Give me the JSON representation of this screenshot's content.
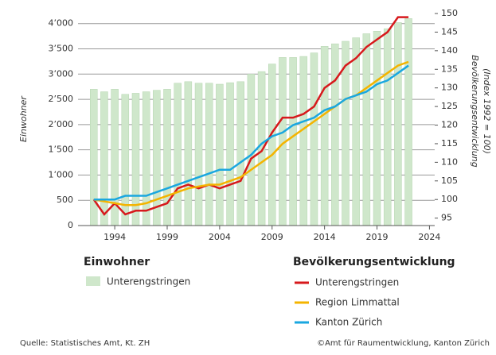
{
  "chart_data": {
    "type": "bar+line",
    "ylabel": "Einwohner",
    "y2label": [
      "Bevölkerungsentwicklung",
      "(Index 1992 = 100)"
    ],
    "x": [
      1992,
      1993,
      1994,
      1995,
      1996,
      1997,
      1998,
      1999,
      2000,
      2001,
      2002,
      2003,
      2004,
      2005,
      2006,
      2007,
      2008,
      2009,
      2010,
      2011,
      2012,
      2013,
      2014,
      2015,
      2016,
      2017,
      2018,
      2019,
      2020,
      2021,
      2022
    ],
    "xlim": [
      1990.5,
      2024.5
    ],
    "xticks": [
      1994,
      1999,
      2004,
      2009,
      2014,
      2019,
      2024
    ],
    "ylim": [
      0,
      4200
    ],
    "yticks": [
      0,
      {
        "value": 500,
        "label": "500"
      },
      {
        "value": 1000,
        "label": "1’000"
      },
      {
        "value": 1500,
        "label": "1’500"
      },
      {
        "value": 2000,
        "label": "2’000"
      },
      {
        "value": 2500,
        "label": "2’500"
      },
      {
        "value": 3000,
        "label": "3’000"
      },
      {
        "value": 3500,
        "label": "3’500"
      },
      {
        "value": 4000,
        "label": "4’000"
      }
    ],
    "y2lim": [
      93,
      150
    ],
    "y2ticks": [
      95,
      100,
      105,
      110,
      115,
      120,
      125,
      130,
      135,
      140,
      145,
      150
    ],
    "grid": true,
    "legend_titles": [
      "Einwohner",
      "Bevölkerungsentwicklung"
    ],
    "series": [
      {
        "name": "Unterengstringen",
        "kind": "bar",
        "color": "#cfe7cb",
        "values": [
          2700,
          2650,
          2700,
          2600,
          2620,
          2650,
          2680,
          2700,
          2820,
          2850,
          2820,
          2820,
          2800,
          2830,
          2850,
          3000,
          3050,
          3200,
          3330,
          3330,
          3350,
          3420,
          3550,
          3600,
          3650,
          3720,
          3800,
          3850,
          3900,
          4020,
          4100
        ]
      },
      {
        "name": "Unterengstringen",
        "kind": "line",
        "axis": "y2",
        "color": "#d7191c",
        "values": [
          100,
          96,
          99,
          96,
          97,
          97,
          98,
          99,
          103,
          104,
          103,
          104,
          103,
          104,
          105,
          111,
          113,
          118,
          122,
          122,
          123,
          125,
          130,
          132,
          136,
          138,
          141,
          143,
          145,
          149,
          149
        ]
      },
      {
        "name": "Region Limmattal",
        "kind": "line",
        "axis": "y2",
        "color": "#f4b400",
        "values": [
          100,
          99.5,
          99,
          98.5,
          98.5,
          99,
          100,
          101,
          102,
          103,
          103.5,
          104,
          104,
          105,
          106,
          108,
          110,
          112,
          115,
          117,
          119,
          121,
          123,
          125,
          127,
          128,
          130,
          132,
          134,
          136,
          137
        ]
      },
      {
        "name": "Kanton Zürich",
        "kind": "line",
        "axis": "y2",
        "color": "#1aa7e0",
        "values": [
          100,
          100,
          100,
          101,
          101,
          101,
          102,
          103,
          104,
          105,
          106,
          107,
          108,
          108,
          110,
          112,
          115,
          117,
          118,
          120,
          121,
          122,
          124,
          125,
          127,
          128,
          129,
          131,
          132,
          134,
          136
        ]
      }
    ],
    "source": "Quelle: Statistisches Amt, Kt. ZH",
    "copyright": "©Amt für Raumentwicklung, Kanton Zürich"
  }
}
